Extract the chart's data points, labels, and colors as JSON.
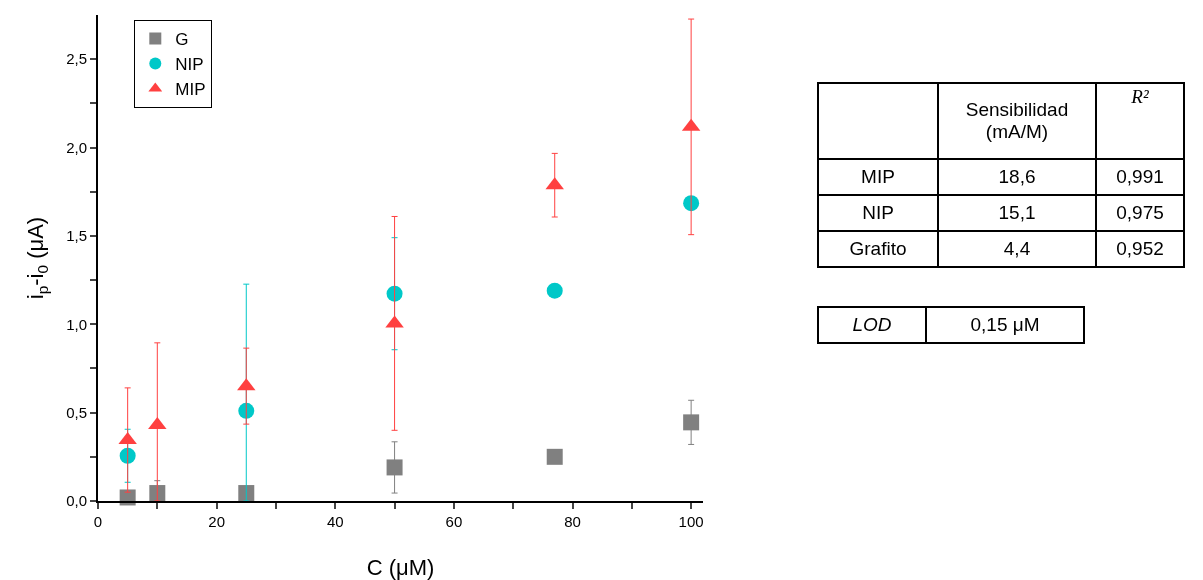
{
  "chart_data": [
    {
      "type": "scatter",
      "xlabel": "C (μM)",
      "ylabel": "i$_{p}$-i$_{0}$ (μA)",
      "xlim": [
        0,
        102
      ],
      "xticks": [
        0,
        {
          "value": 10,
          "label": null
        },
        20,
        {
          "value": 30,
          "label": null
        },
        40,
        {
          "value": 50,
          "label": null
        },
        60,
        {
          "value": 70,
          "label": null
        },
        80,
        {
          "value": 90,
          "label": null
        },
        100
      ],
      "ylim": [
        0,
        2.75
      ],
      "yticks": [
        {
          "value": 0,
          "label": "0,0"
        },
        {
          "value": 0.25,
          "label": null
        },
        {
          "value": 0.5,
          "label": "0,5"
        },
        {
          "value": 0.75,
          "label": null
        },
        {
          "value": 1,
          "label": "1,0"
        },
        {
          "value": 1.25,
          "label": null
        },
        {
          "value": 1.5,
          "label": "1,5"
        },
        {
          "value": 1.75,
          "label": null
        },
        {
          "value": 2,
          "label": "2,0"
        },
        {
          "value": 2.25,
          "label": null
        },
        {
          "value": 2.5,
          "label": "2,5"
        }
      ],
      "grid": false,
      "legend": "top left",
      "series": [
        {
          "name": "G",
          "color": "#808080",
          "marker": "square",
          "x": [
            5,
            10,
            25,
            50,
            77,
            100
          ],
          "values": [
            0.02,
            0.045,
            0.045,
            0.19,
            0.25,
            0.445
          ],
          "errors": [
            null,
            [
              0,
              0.115
            ],
            null,
            0.145,
            null,
            0.125
          ]
        },
        {
          "name": "NIP",
          "color": "#00c8c8",
          "marker": "circle",
          "x": [
            5,
            25,
            50,
            77,
            100
          ],
          "values": [
            0.256,
            0.51,
            1.173,
            1.19,
            1.685
          ],
          "errors": [
            0.15,
            [
              0,
              1.227
            ],
            0.317,
            null,
            null
          ]
        },
        {
          "name": "MIP",
          "color": "#ff4040",
          "marker": "triangle",
          "x": [
            5,
            10,
            25,
            50,
            77,
            100
          ],
          "values": [
            0.345,
            0.43,
            0.65,
            1.005,
            1.787,
            2.117
          ],
          "errors": [
            0.295,
            [
              0,
              0.895
            ],
            0.215,
            0.605,
            0.18,
            0.61
          ]
        }
      ]
    },
    {
      "type": "other",
      "annotations": [
        "Sensibilidad (mA/M)",
        "R²",
        "MIP",
        "18,6",
        "0,991",
        "NIP",
        "15,1",
        "0,975",
        "Grafito",
        "4,4",
        "0,952",
        "LOD",
        "0,15 μM"
      ]
    }
  ]
}
